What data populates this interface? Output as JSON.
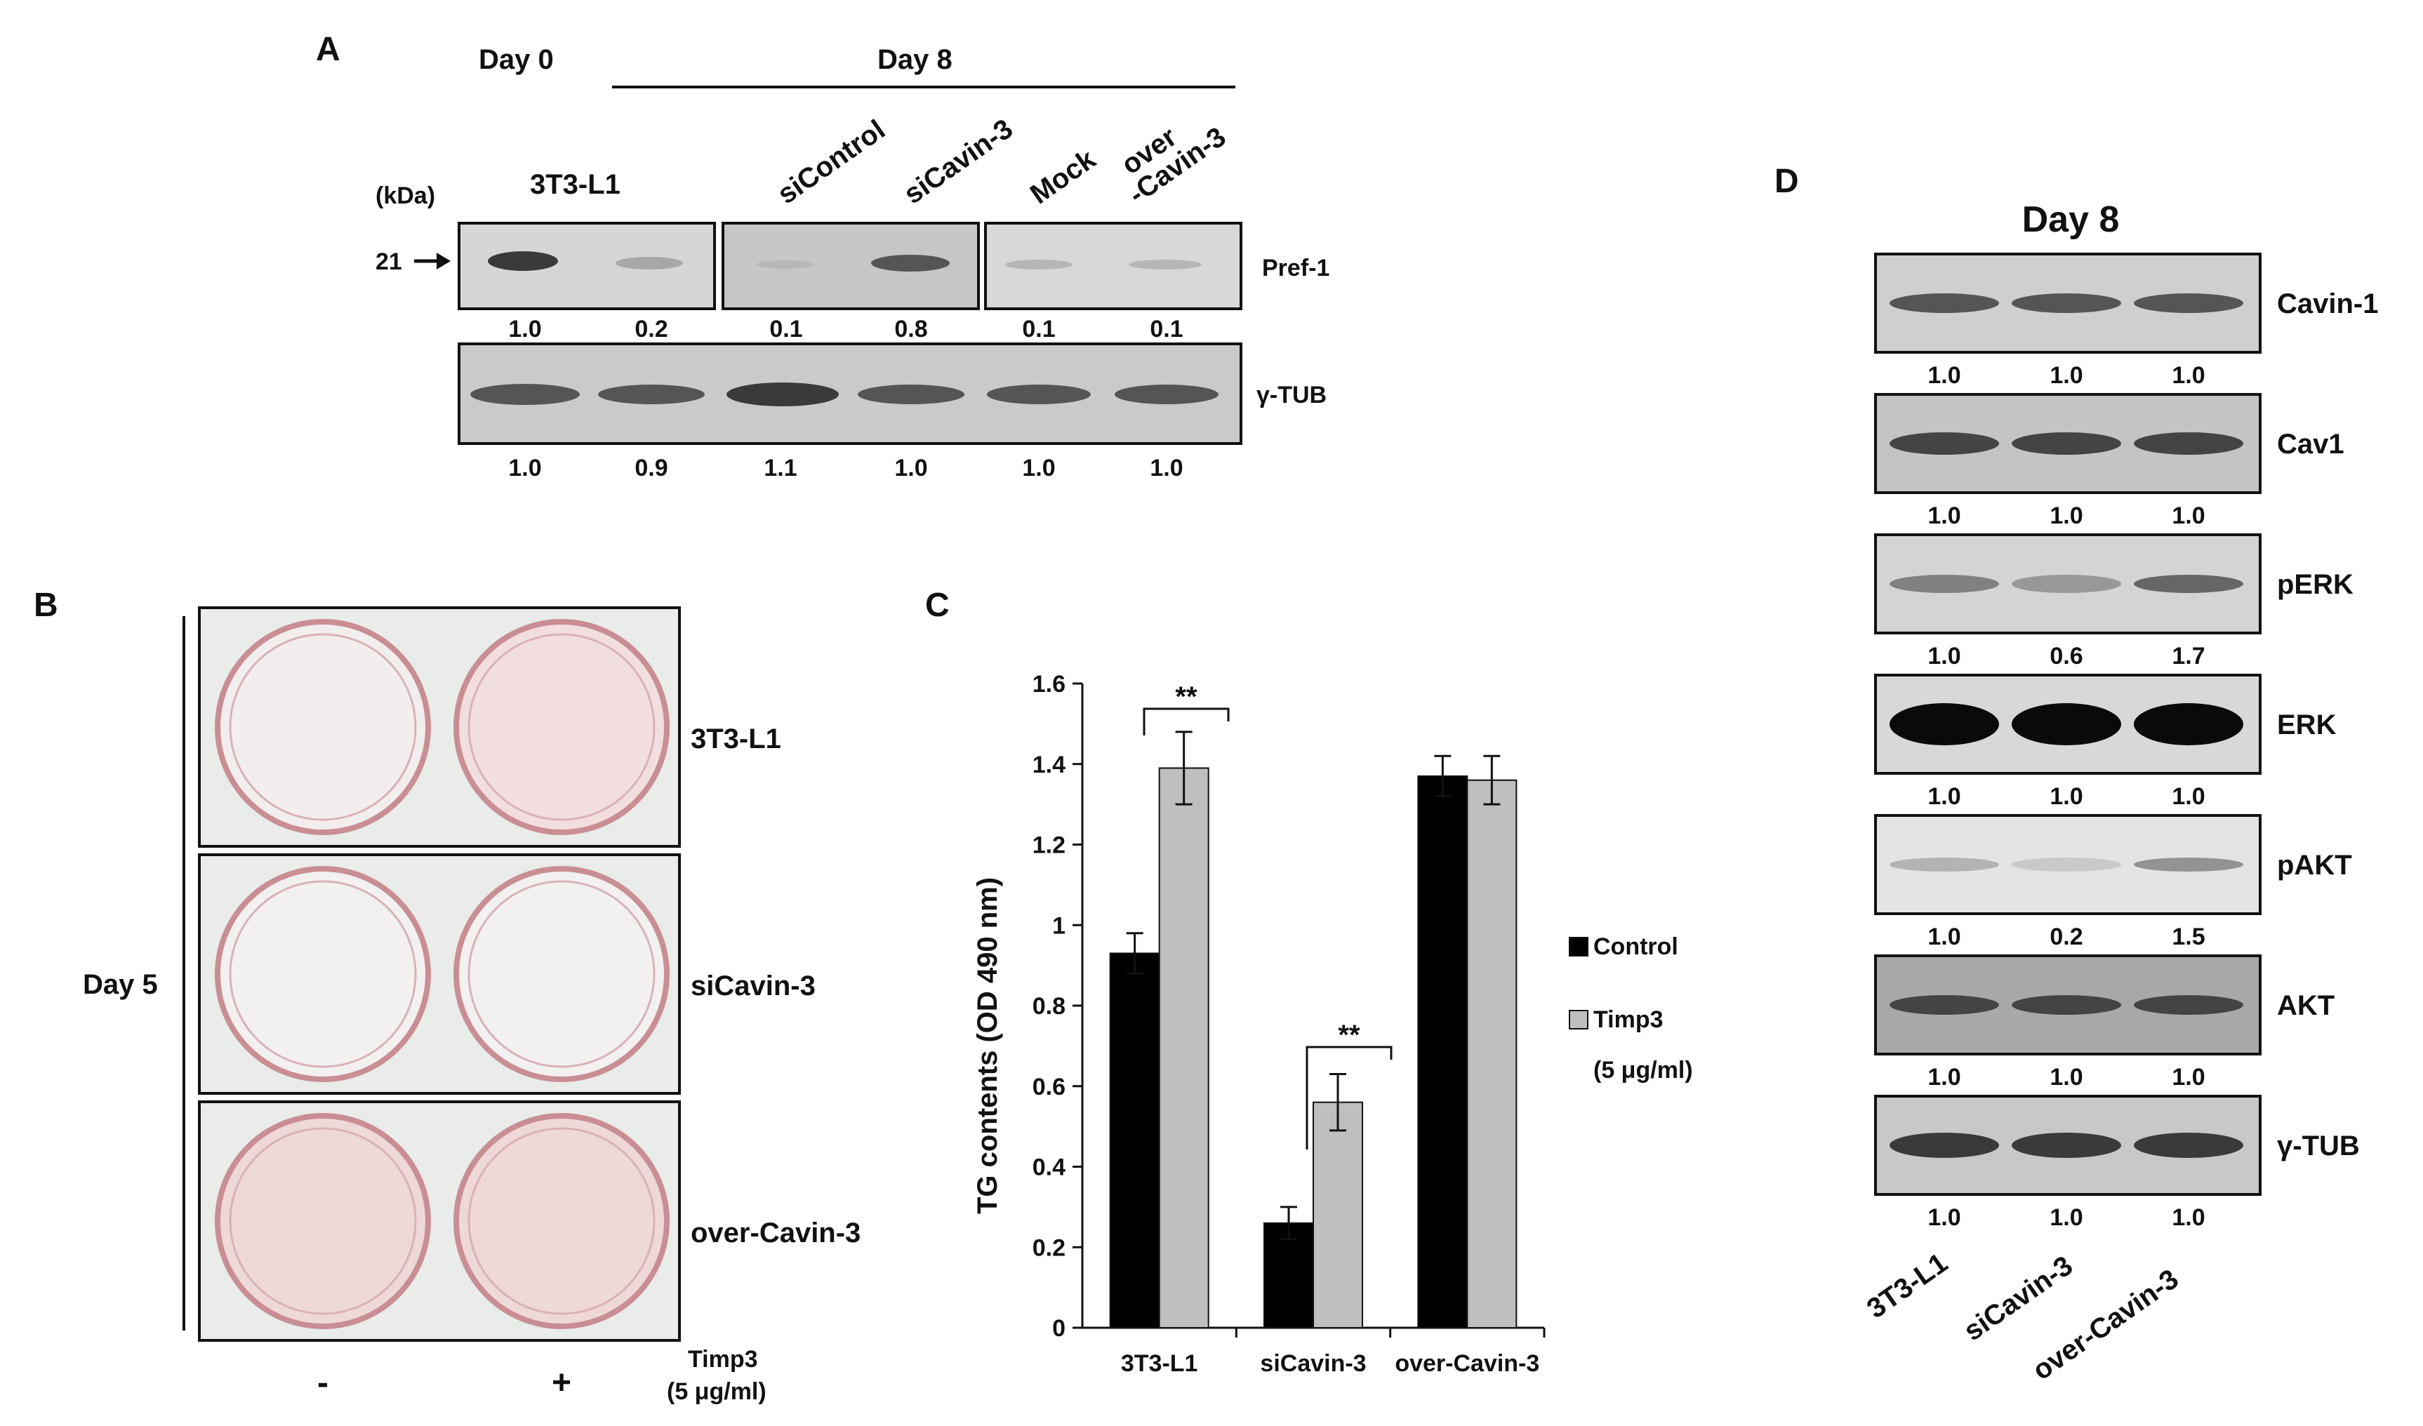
{
  "panelA": {
    "letter": "A",
    "day0": "Day 0",
    "day8": "Day 8",
    "kda": "(kDa)",
    "marker": "21",
    "lanes": [
      "3T3-L1",
      "siControl",
      "siCavin-3",
      "Mock",
      "over",
      "-Cavin-3"
    ],
    "protein1": "Pref-1",
    "protein2": "γ-TUB",
    "pref1_values": [
      "1.0",
      "0.2",
      "0.1",
      "0.8",
      "0.1",
      "0.1"
    ],
    "tub_values": [
      "1.0",
      "0.9",
      "1.1",
      "1.0",
      "1.0",
      "1.0"
    ]
  },
  "panelB": {
    "letter": "B",
    "rows": [
      "3T3-L1",
      "siCavin-3",
      "over-Cavin-3"
    ],
    "side": "Day 5",
    "minus": "-",
    "plus": "+",
    "treat1": "Timp3",
    "treat2": "(5 μg/ml)"
  },
  "panelC": {
    "letter": "C",
    "legend_control": "Control",
    "legend_timp": "Timp3",
    "legend_timp2": "(5 μg/ml)",
    "sig1": "**",
    "sig2": "**",
    "colors": {
      "control": "#000000",
      "timp3": "#bfbfbf"
    }
  },
  "chart_data": {
    "type": "bar",
    "categories": [
      "3T3-L1",
      "siCavin-3",
      "over-Cavin-3"
    ],
    "series": [
      {
        "name": "Control",
        "values": [
          0.93,
          0.26,
          1.37
        ],
        "errors": [
          0.05,
          0.04,
          0.05
        ]
      },
      {
        "name": "Timp3",
        "values": [
          1.39,
          0.56,
          1.36
        ],
        "errors": [
          0.09,
          0.07,
          0.06
        ]
      }
    ],
    "ylabel": "TG contents (OD 490 nm)",
    "ylim": [
      0,
      1.6
    ],
    "yticks": [
      "0",
      "0.2",
      "0.4",
      "0.6",
      "0.8",
      "1",
      "1.2",
      "1.4",
      "1.6"
    ],
    "legend": "right"
  },
  "panelD": {
    "letter": "D",
    "title": "Day 8",
    "proteins": [
      "Cavin-1",
      "Cav1",
      "pERK",
      "ERK",
      "pAKT",
      "AKT",
      "γ-TUB"
    ],
    "values": [
      [
        "1.0",
        "1.0",
        "1.0"
      ],
      [
        "1.0",
        "1.0",
        "1.0"
      ],
      [
        "1.0",
        "0.6",
        "1.7"
      ],
      [
        "1.0",
        "1.0",
        "1.0"
      ],
      [
        "1.0",
        "0.2",
        "1.5"
      ],
      [
        "1.0",
        "1.0",
        "1.0"
      ],
      [
        "1.0",
        "1.0",
        "1.0"
      ]
    ],
    "lanes": [
      "3T3-L1",
      "siCavin-3",
      "over-Cavin-3"
    ]
  }
}
